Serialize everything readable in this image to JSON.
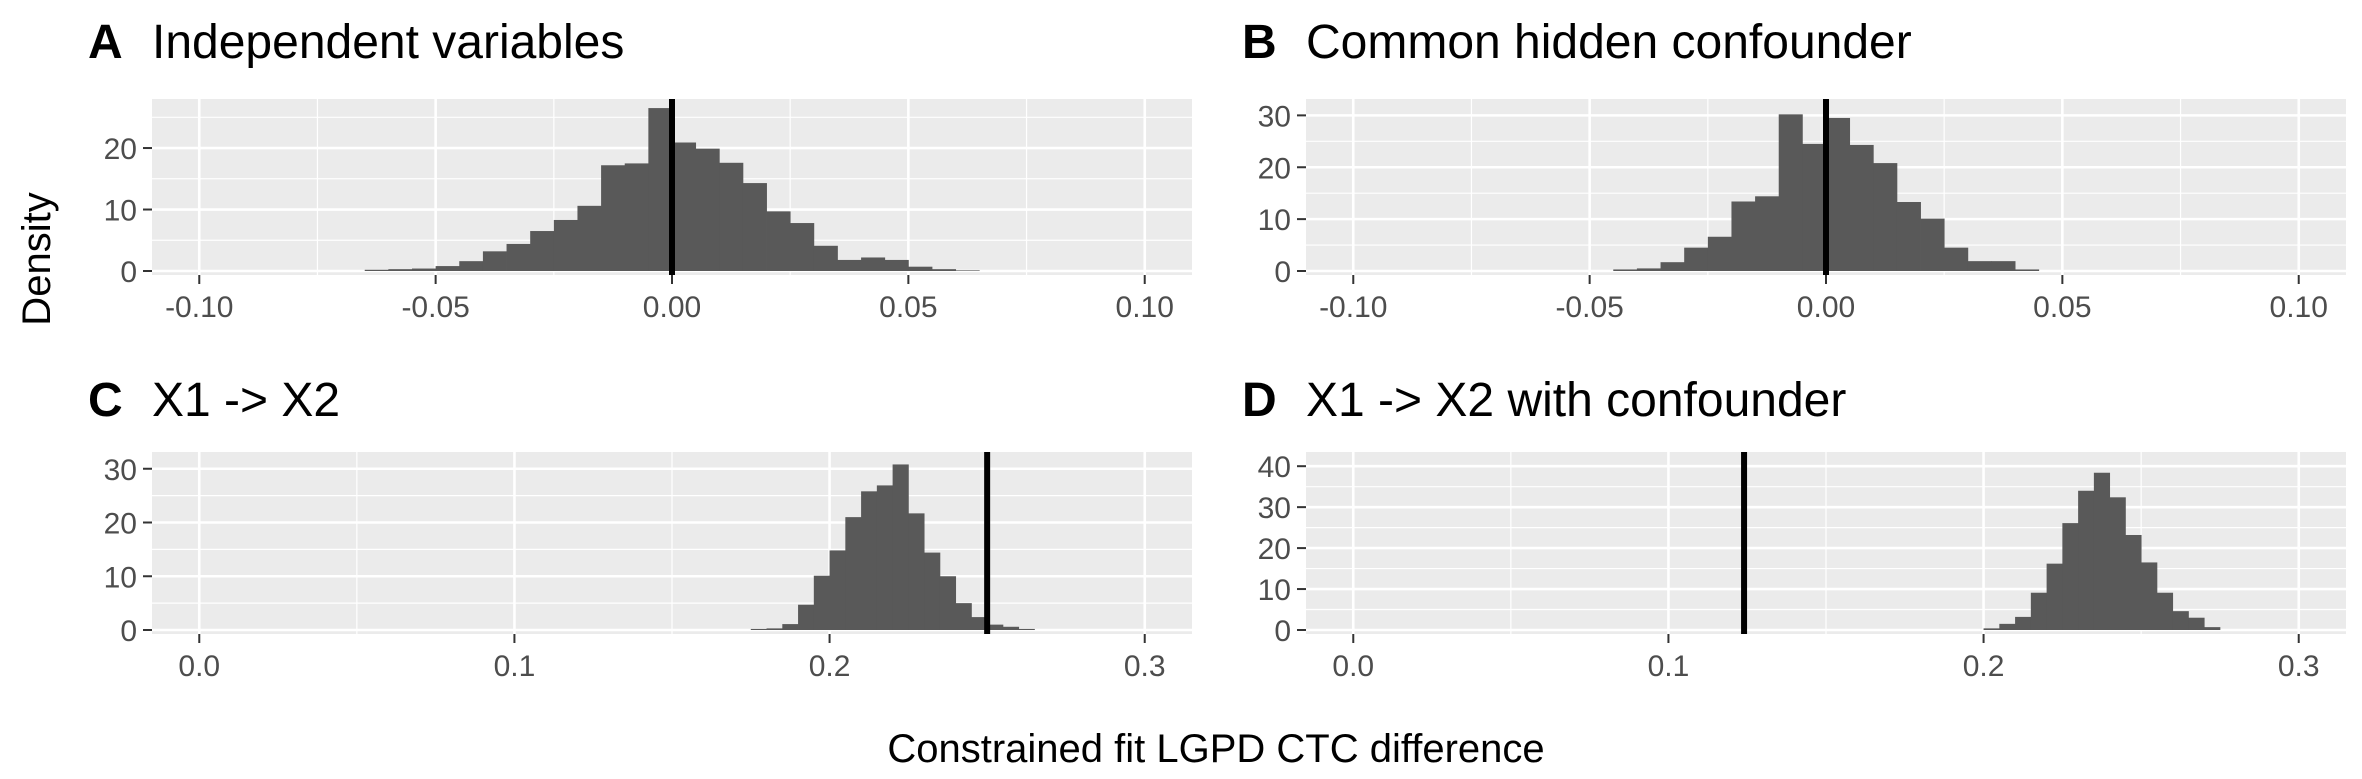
{
  "figure": {
    "ylabel": "Density",
    "xlabel": "Constrained fit LGPD CTC difference"
  },
  "colors": {
    "panel_background": "#ebebeb",
    "grid": "#ffffff",
    "bar_fill": "#595959",
    "reference_line": "#000000",
    "tick_text": "#4d4d4d",
    "text": "#000000"
  },
  "chart_data": [
    {
      "type": "bar",
      "letter": "A",
      "title": "Independent variables",
      "xlim": [
        -0.11,
        0.11
      ],
      "ylim": [
        0,
        27
      ],
      "xticks": [
        -0.1,
        -0.05,
        0.0,
        0.05,
        0.1
      ],
      "xtick_labels": [
        "-0.10",
        "-0.05",
        "0.00",
        "0.05",
        "0.10"
      ],
      "yticks": [
        0,
        10,
        20
      ],
      "ytick_labels": [
        "0",
        "10",
        "20"
      ],
      "bin_width": 0.005,
      "bin_starts": [
        -0.065,
        -0.06,
        -0.055,
        -0.05,
        -0.045,
        -0.04,
        -0.035,
        -0.03,
        -0.025,
        -0.02,
        -0.015,
        -0.01,
        -0.005,
        0.0,
        0.005,
        0.01,
        0.015,
        0.02,
        0.025,
        0.03,
        0.035,
        0.04,
        0.045,
        0.05,
        0.055,
        0.06
      ],
      "values": [
        0.2,
        0.3,
        0.4,
        0.8,
        1.6,
        3.2,
        4.4,
        6.5,
        8.3,
        10.6,
        17.2,
        17.5,
        26.5,
        20.9,
        19.9,
        17.6,
        14.3,
        9.7,
        7.8,
        4.1,
        1.8,
        2.2,
        1.8,
        0.7,
        0.3,
        0.1
      ],
      "reference_x": 0.0
    },
    {
      "type": "bar",
      "letter": "B",
      "title": "Common hidden confounder",
      "xlim": [
        -0.11,
        0.11
      ],
      "ylim": [
        0,
        32
      ],
      "xticks": [
        -0.1,
        -0.05,
        0.0,
        0.05,
        0.1
      ],
      "xtick_labels": [
        "-0.10",
        "-0.05",
        "0.00",
        "0.05",
        "0.10"
      ],
      "yticks": [
        0,
        10,
        20,
        30
      ],
      "ytick_labels": [
        "0",
        "10",
        "20",
        "30"
      ],
      "bin_width": 0.005,
      "bin_starts": [
        -0.045,
        -0.04,
        -0.035,
        -0.03,
        -0.025,
        -0.02,
        -0.015,
        -0.01,
        -0.005,
        0.0,
        0.005,
        0.01,
        0.015,
        0.02,
        0.025,
        0.03,
        0.035,
        0.04
      ],
      "values": [
        0.3,
        0.5,
        1.7,
        4.5,
        6.6,
        13.4,
        14.4,
        30.2,
        24.5,
        29.5,
        24.3,
        20.8,
        13.3,
        10.1,
        4.5,
        1.9,
        1.9,
        0.3
      ],
      "reference_x": 0.0
    },
    {
      "type": "bar",
      "letter": "C",
      "title": "X1 -> X2",
      "xlim": [
        -0.015,
        0.315
      ],
      "ylim": [
        0,
        32
      ],
      "xticks": [
        0.0,
        0.1,
        0.2,
        0.3
      ],
      "xtick_labels": [
        "0.0",
        "0.1",
        "0.2",
        "0.3"
      ],
      "yticks": [
        0,
        10,
        20,
        30
      ],
      "ytick_labels": [
        "0",
        "10",
        "20",
        "30"
      ],
      "bin_width": 0.005,
      "bin_starts": [
        0.175,
        0.18,
        0.185,
        0.19,
        0.195,
        0.2,
        0.205,
        0.21,
        0.215,
        0.22,
        0.225,
        0.23,
        0.235,
        0.24,
        0.245,
        0.25,
        0.255,
        0.26
      ],
      "values": [
        0.2,
        0.3,
        1.1,
        4.7,
        10.1,
        14.8,
        21.0,
        25.8,
        26.9,
        30.8,
        21.7,
        14.4,
        10.0,
        5.0,
        2.4,
        1.0,
        0.6,
        0.2
      ],
      "reference_x": 0.25
    },
    {
      "type": "bar",
      "letter": "D",
      "title": "X1 -> X2 with confounder",
      "xlim": [
        -0.015,
        0.315
      ],
      "ylim": [
        0,
        42
      ],
      "xticks": [
        0.0,
        0.1,
        0.2,
        0.3
      ],
      "xtick_labels": [
        "0.0",
        "0.1",
        "0.2",
        "0.3"
      ],
      "yticks": [
        0,
        10,
        20,
        30,
        40
      ],
      "ytick_labels": [
        "0",
        "10",
        "20",
        "30",
        "40"
      ],
      "bin_width": 0.005,
      "bin_starts": [
        0.2,
        0.205,
        0.21,
        0.215,
        0.22,
        0.225,
        0.23,
        0.235,
        0.24,
        0.245,
        0.25,
        0.255,
        0.26,
        0.265,
        0.27
      ],
      "values": [
        0.4,
        1.5,
        3.2,
        9.1,
        16.2,
        26.1,
        34.0,
        38.4,
        32.4,
        23.2,
        16.5,
        9.1,
        4.6,
        3.0,
        0.7
      ],
      "reference_x": 0.124
    }
  ]
}
